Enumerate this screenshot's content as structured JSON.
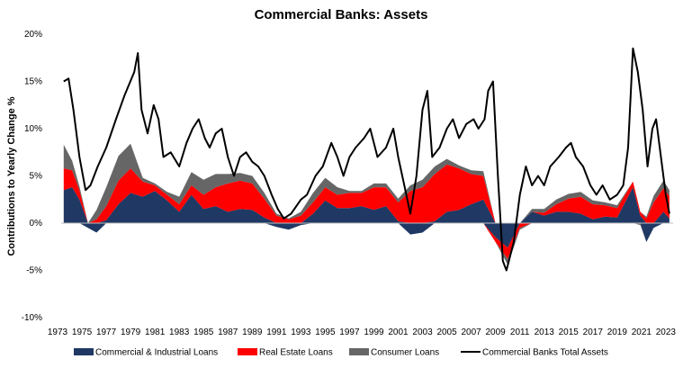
{
  "chart_data": {
    "type": "area",
    "title": "Commercial Banks: Assets",
    "ylabel": "Contributions to Yearly Change %",
    "xlabel": "",
    "xlim": [
      1973,
      2023.6
    ],
    "ylim": [
      -10,
      20
    ],
    "yticks": [
      -10,
      -5,
      0,
      5,
      10,
      15,
      20
    ],
    "ytick_labels": [
      "-10%",
      "-5%",
      "0%",
      "5%",
      "10%",
      "15%",
      "20%"
    ],
    "xticks": [
      1973,
      1975,
      1977,
      1979,
      1981,
      1983,
      1985,
      1987,
      1989,
      1991,
      1993,
      1995,
      1997,
      1999,
      2001,
      2003,
      2005,
      2007,
      2009,
      2011,
      2013,
      2015,
      2017,
      2019,
      2021,
      2023
    ],
    "grid": false,
    "legend_position": "bottom",
    "stacked_series": [
      {
        "name": "Commercial & Industrial Loans",
        "color": "#1F3864",
        "points": [
          [
            1973.5,
            3.5
          ],
          [
            1974.2,
            3.8
          ],
          [
            1974.8,
            2.5
          ],
          [
            1975.5,
            -0.5
          ],
          [
            1976.2,
            -1
          ],
          [
            1977,
            0.3
          ],
          [
            1978,
            2
          ],
          [
            1979,
            3.2
          ],
          [
            1980,
            2.8
          ],
          [
            1981,
            3.4
          ],
          [
            1982,
            2.4
          ],
          [
            1983,
            1.2
          ],
          [
            1984,
            3
          ],
          [
            1985,
            1.5
          ],
          [
            1986,
            1.8
          ],
          [
            1987,
            1.2
          ],
          [
            1988,
            1.5
          ],
          [
            1989,
            1.4
          ],
          [
            1990,
            0.6
          ],
          [
            1991,
            -0.4
          ],
          [
            1992,
            -0.7
          ],
          [
            1993,
            -0.2
          ],
          [
            1994,
            1
          ],
          [
            1995,
            2.4
          ],
          [
            1996,
            1.6
          ],
          [
            1997,
            1.6
          ],
          [
            1998,
            1.8
          ],
          [
            1999,
            1.4
          ],
          [
            2000,
            1.8
          ],
          [
            2001,
            0.2
          ],
          [
            2002,
            -1.2
          ],
          [
            2003,
            -1
          ],
          [
            2004,
            0.2
          ],
          [
            2005,
            1.2
          ],
          [
            2006,
            1.4
          ],
          [
            2007,
            2
          ],
          [
            2008,
            2.5
          ],
          [
            2009,
            -1.5
          ],
          [
            2010,
            -2.6
          ],
          [
            2011,
            0
          ],
          [
            2012,
            1.2
          ],
          [
            2013,
            0.8
          ],
          [
            2014,
            1.2
          ],
          [
            2015,
            1.2
          ],
          [
            2016,
            1
          ],
          [
            2017,
            0.4
          ],
          [
            2018,
            0.7
          ],
          [
            2019,
            0.6
          ],
          [
            2020.3,
            3.8
          ],
          [
            2020.9,
            0.8
          ],
          [
            2021.4,
            -2
          ],
          [
            2022,
            -0.5
          ],
          [
            2022.8,
            1.2
          ],
          [
            2023.3,
            0.5
          ]
        ]
      },
      {
        "name": "Real Estate Loans",
        "color": "#FF0000",
        "points": [
          [
            1973.5,
            2.3
          ],
          [
            1974.2,
            1.8
          ],
          [
            1974.8,
            1
          ],
          [
            1975.5,
            0
          ],
          [
            1976.2,
            0.4
          ],
          [
            1977,
            1.5
          ],
          [
            1978,
            2.5
          ],
          [
            1979,
            2.6
          ],
          [
            1980,
            1.6
          ],
          [
            1981,
            0.6
          ],
          [
            1982,
            0.6
          ],
          [
            1983,
            0.8
          ],
          [
            1984,
            1
          ],
          [
            1985,
            1.5
          ],
          [
            1986,
            2
          ],
          [
            1987,
            3
          ],
          [
            1988,
            3
          ],
          [
            1989,
            2.8
          ],
          [
            1990,
            2
          ],
          [
            1991,
            0.8
          ],
          [
            1992,
            0.4
          ],
          [
            1993,
            0.8
          ],
          [
            1994,
            1.2
          ],
          [
            1995,
            1.4
          ],
          [
            1996,
            1.4
          ],
          [
            1997,
            1.6
          ],
          [
            1998,
            1.4
          ],
          [
            1999,
            2.4
          ],
          [
            2000,
            2
          ],
          [
            2001,
            2
          ],
          [
            2002,
            3.4
          ],
          [
            2003,
            3.8
          ],
          [
            2004,
            5
          ],
          [
            2005,
            5
          ],
          [
            2006,
            4.4
          ],
          [
            2007,
            3.2
          ],
          [
            2008,
            2.5
          ],
          [
            2009,
            -0.5
          ],
          [
            2010,
            -1.2
          ],
          [
            2011,
            -0.5
          ],
          [
            2012,
            0
          ],
          [
            2013,
            0.3
          ],
          [
            2014,
            0.8
          ],
          [
            2015,
            1.4
          ],
          [
            2016,
            1.8
          ],
          [
            2017,
            1.6
          ],
          [
            2018,
            1.2
          ],
          [
            2019,
            1
          ],
          [
            2020.3,
            0.6
          ],
          [
            2020.9,
            0.4
          ],
          [
            2021.4,
            0.5
          ],
          [
            2022,
            2.2
          ],
          [
            2022.8,
            2.5
          ],
          [
            2023.3,
            2.4
          ]
        ]
      },
      {
        "name": "Consumer Loans",
        "color": "#666666",
        "points": [
          [
            1973.5,
            2.5
          ],
          [
            1974.2,
            1
          ],
          [
            1974.8,
            0.4
          ],
          [
            1975.5,
            0
          ],
          [
            1976.2,
            1
          ],
          [
            1977,
            2
          ],
          [
            1978,
            2.6
          ],
          [
            1979,
            2.6
          ],
          [
            1980,
            0.4
          ],
          [
            1981,
            0.2
          ],
          [
            1982,
            0.3
          ],
          [
            1983,
            0.8
          ],
          [
            1984,
            1.4
          ],
          [
            1985,
            1.6
          ],
          [
            1986,
            1.4
          ],
          [
            1987,
            1
          ],
          [
            1988,
            0.8
          ],
          [
            1989,
            0.8
          ],
          [
            1990,
            0.6
          ],
          [
            1991,
            0.2
          ],
          [
            1992,
            0.1
          ],
          [
            1993,
            0.4
          ],
          [
            1994,
            1
          ],
          [
            1995,
            1
          ],
          [
            1996,
            0.8
          ],
          [
            1997,
            0.2
          ],
          [
            1998,
            0.2
          ],
          [
            1999,
            0.4
          ],
          [
            2000,
            0.4
          ],
          [
            2001,
            0.4
          ],
          [
            2002,
            0.6
          ],
          [
            2003,
            0.8
          ],
          [
            2004,
            0.8
          ],
          [
            2005,
            0.6
          ],
          [
            2006,
            0.3
          ],
          [
            2007,
            0.4
          ],
          [
            2008,
            0.5
          ],
          [
            2009,
            0
          ],
          [
            2010,
            -0.6
          ],
          [
            2011,
            -0.2
          ],
          [
            2012,
            0.3
          ],
          [
            2013,
            0.4
          ],
          [
            2014,
            0.5
          ],
          [
            2015,
            0.5
          ],
          [
            2016,
            0.5
          ],
          [
            2017,
            0.4
          ],
          [
            2018,
            0.3
          ],
          [
            2019,
            0.3
          ],
          [
            2020.3,
            0
          ],
          [
            2020.9,
            -0.2
          ],
          [
            2021.4,
            0.2
          ],
          [
            2022,
            0.7
          ],
          [
            2022.8,
            0.8
          ],
          [
            2023.3,
            0.6
          ]
        ]
      }
    ],
    "line_series": [
      {
        "name": "Commercial Banks Total Assets",
        "color": "#000000",
        "points": [
          [
            1973.5,
            15
          ],
          [
            1973.9,
            15.3
          ],
          [
            1974.3,
            12
          ],
          [
            1974.8,
            7
          ],
          [
            1975.3,
            3.5
          ],
          [
            1975.7,
            4
          ],
          [
            1976.3,
            6
          ],
          [
            1977,
            8
          ],
          [
            1977.8,
            11
          ],
          [
            1978.5,
            13.5
          ],
          [
            1979.3,
            16
          ],
          [
            1979.6,
            18
          ],
          [
            1979.9,
            12
          ],
          [
            1980.4,
            9.5
          ],
          [
            1980.9,
            12.5
          ],
          [
            1981.3,
            11
          ],
          [
            1981.7,
            7
          ],
          [
            1982.3,
            7.5
          ],
          [
            1983,
            6
          ],
          [
            1983.6,
            8.5
          ],
          [
            1984.1,
            10
          ],
          [
            1984.6,
            11
          ],
          [
            1985.1,
            9
          ],
          [
            1985.5,
            8
          ],
          [
            1986,
            9.5
          ],
          [
            1986.5,
            10
          ],
          [
            1987,
            7
          ],
          [
            1987.5,
            5
          ],
          [
            1988,
            7
          ],
          [
            1988.5,
            7.5
          ],
          [
            1989,
            6.5
          ],
          [
            1989.5,
            6
          ],
          [
            1990,
            5
          ],
          [
            1990.6,
            3
          ],
          [
            1991.1,
            1.5
          ],
          [
            1991.6,
            0.5
          ],
          [
            1992.2,
            1
          ],
          [
            1993,
            2.5
          ],
          [
            1993.5,
            3
          ],
          [
            1994.2,
            5
          ],
          [
            1994.8,
            6
          ],
          [
            1995.5,
            8.5
          ],
          [
            1996,
            7
          ],
          [
            1996.5,
            5
          ],
          [
            1997,
            7
          ],
          [
            1997.5,
            8
          ],
          [
            1998.2,
            9
          ],
          [
            1998.7,
            10
          ],
          [
            1999.3,
            7
          ],
          [
            2000,
            8
          ],
          [
            2000.6,
            10
          ],
          [
            2001,
            7
          ],
          [
            2001.5,
            4
          ],
          [
            2002,
            1
          ],
          [
            2002.5,
            5
          ],
          [
            2003,
            12
          ],
          [
            2003.4,
            14
          ],
          [
            2003.8,
            7
          ],
          [
            2004.4,
            8
          ],
          [
            2005,
            10
          ],
          [
            2005.5,
            11
          ],
          [
            2006,
            9
          ],
          [
            2006.6,
            10.5
          ],
          [
            2007.2,
            11
          ],
          [
            2007.6,
            10
          ],
          [
            2008.1,
            11
          ],
          [
            2008.4,
            14
          ],
          [
            2008.8,
            15
          ],
          [
            2009.2,
            5
          ],
          [
            2009.6,
            -4
          ],
          [
            2009.9,
            -5
          ],
          [
            2010.5,
            -2
          ],
          [
            2011,
            3
          ],
          [
            2011.5,
            6
          ],
          [
            2012,
            4
          ],
          [
            2012.5,
            5
          ],
          [
            2013,
            4
          ],
          [
            2013.5,
            6
          ],
          [
            2014.2,
            7
          ],
          [
            2014.8,
            8
          ],
          [
            2015.2,
            8.5
          ],
          [
            2015.6,
            7
          ],
          [
            2016.2,
            6
          ],
          [
            2016.8,
            4
          ],
          [
            2017.3,
            3
          ],
          [
            2017.8,
            4
          ],
          [
            2018.4,
            2.5
          ],
          [
            2019,
            3
          ],
          [
            2019.5,
            4
          ],
          [
            2019.9,
            8
          ],
          [
            2020.3,
            18.5
          ],
          [
            2020.7,
            16
          ],
          [
            2021.1,
            12
          ],
          [
            2021.5,
            6
          ],
          [
            2021.9,
            10
          ],
          [
            2022.2,
            11
          ],
          [
            2022.6,
            7
          ],
          [
            2023,
            3
          ],
          [
            2023.3,
            1
          ]
        ]
      }
    ],
    "legend": [
      {
        "label": "Commercial & Industrial Loans",
        "kind": "box",
        "color": "#1F3864"
      },
      {
        "label": "Real Estate Loans",
        "kind": "box",
        "color": "#FF0000"
      },
      {
        "label": "Consumer Loans",
        "kind": "box",
        "color": "#666666"
      },
      {
        "label": "Commercial Banks Total Assets",
        "kind": "line",
        "color": "#000000"
      }
    ]
  }
}
